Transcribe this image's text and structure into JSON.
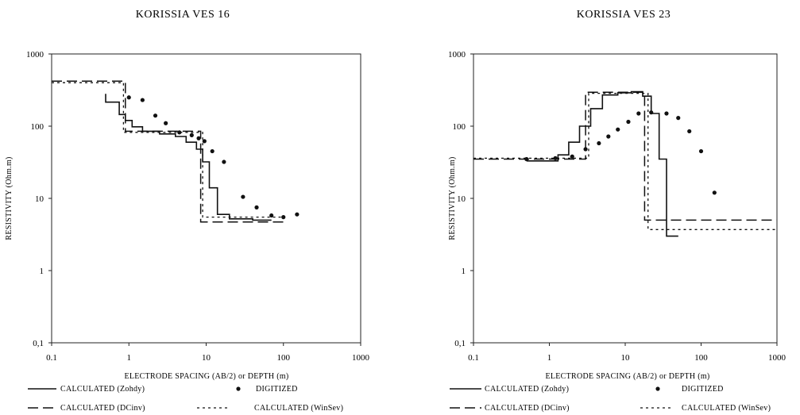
{
  "chart_data": [
    {
      "type": "line",
      "title": "KORISSIA VES 16",
      "xlabel": "ELECTRODE SPACING (AB/2) or DEPTH (m)",
      "ylabel": "RESISTIVITY (Ohm.m)",
      "xscale": "log",
      "yscale": "log",
      "xlim": [
        0.1,
        1000
      ],
      "ylim": [
        0.1,
        1000
      ],
      "xticks": [
        "0.1",
        "1",
        "10",
        "100",
        "1000"
      ],
      "yticks": [
        "0,1",
        "1",
        "10",
        "100",
        "1000"
      ],
      "grid": false,
      "legend_placement": "bottom",
      "legend": [
        {
          "label": "CALCULATED (Zohdy)",
          "style": "solid"
        },
        {
          "label": "DIGITIZED",
          "style": "dot"
        },
        {
          "label": "CALCULATED (DCinv)",
          "style": "dash"
        },
        {
          "label": "CALCULATED (WinSev)",
          "style": "dotted"
        }
      ],
      "series": [
        {
          "name": "CALCULATED (Zohdy)",
          "style": "solid",
          "points": [
            [
              0.5,
              280
            ],
            [
              0.5,
              215
            ],
            [
              0.75,
              215
            ],
            [
              0.75,
              145
            ],
            [
              0.9,
              145
            ],
            [
              0.9,
              120
            ],
            [
              1.1,
              120
            ],
            [
              1.1,
              98
            ],
            [
              1.5,
              98
            ],
            [
              1.5,
              85
            ],
            [
              2.5,
              85
            ],
            [
              2.5,
              78
            ],
            [
              4,
              78
            ],
            [
              4,
              72
            ],
            [
              5.5,
              72
            ],
            [
              5.5,
              60
            ],
            [
              7.5,
              60
            ],
            [
              7.5,
              48
            ],
            [
              9,
              48
            ],
            [
              9,
              32
            ],
            [
              11,
              32
            ],
            [
              11,
              14
            ],
            [
              14,
              14
            ],
            [
              14,
              6
            ],
            [
              20,
              6
            ],
            [
              20,
              5.2
            ],
            [
              40,
              5.2
            ],
            [
              40,
              5
            ],
            [
              70,
              5
            ]
          ]
        },
        {
          "name": "DIGITIZED",
          "style": "dot",
          "points": [
            [
              1,
              250
            ],
            [
              1.5,
              230
            ],
            [
              2.2,
              140
            ],
            [
              3,
              110
            ],
            [
              4.5,
              82
            ],
            [
              6.5,
              75
            ],
            [
              8,
              68
            ],
            [
              9.5,
              62
            ],
            [
              12,
              45
            ],
            [
              17,
              32
            ],
            [
              30,
              10.5
            ],
            [
              45,
              7.5
            ],
            [
              70,
              5.8
            ],
            [
              100,
              5.5
            ],
            [
              150,
              6
            ]
          ]
        },
        {
          "name": "CALCULATED (DCinv)",
          "style": "dash",
          "points": [
            [
              0.1,
              420
            ],
            [
              0.9,
              420
            ],
            [
              0.9,
              85
            ],
            [
              8.5,
              85
            ],
            [
              8.5,
              4.7
            ],
            [
              100,
              4.7
            ]
          ]
        },
        {
          "name": "CALCULATED (WinSev)",
          "style": "dotted",
          "points": [
            [
              0.1,
              400
            ],
            [
              0.85,
              400
            ],
            [
              0.85,
              82
            ],
            [
              9,
              82
            ],
            [
              9,
              5.5
            ],
            [
              100,
              5.5
            ]
          ]
        }
      ]
    },
    {
      "type": "line",
      "title": "KORISSIA VES 23",
      "xlabel": "ELECTRODE SPACING (AB/2) or DEPTH (m)",
      "ylabel": "RESISTIVITY (Ohm.m)",
      "xscale": "log",
      "yscale": "log",
      "xlim": [
        0.1,
        1000
      ],
      "ylim": [
        0.1,
        1000
      ],
      "xticks": [
        "0.1",
        "1",
        "10",
        "100",
        "1000"
      ],
      "yticks": [
        "0,1",
        "1",
        "10",
        "100",
        "1000"
      ],
      "grid": false,
      "legend_placement": "bottom",
      "legend": [
        {
          "label": "CALCULATED (Zohdy)",
          "style": "solid"
        },
        {
          "label": "DIGITIZED",
          "style": "dot"
        },
        {
          "label": "CALCULATED (DCinv)",
          "style": "dash"
        },
        {
          "label": "CALCULATED (WinSev)",
          "style": "dotted"
        }
      ],
      "series": [
        {
          "name": "CALCULATED (Zohdy)",
          "style": "solid",
          "points": [
            [
              0.5,
              33
            ],
            [
              1.3,
              33
            ],
            [
              1.3,
              40
            ],
            [
              1.8,
              40
            ],
            [
              1.8,
              60
            ],
            [
              2.5,
              60
            ],
            [
              2.5,
              100
            ],
            [
              3.5,
              100
            ],
            [
              3.5,
              175
            ],
            [
              5,
              175
            ],
            [
              5,
              270
            ],
            [
              8,
              270
            ],
            [
              8,
              290
            ],
            [
              12,
              290
            ],
            [
              12,
              300
            ],
            [
              17,
              300
            ],
            [
              17,
              260
            ],
            [
              22,
              260
            ],
            [
              22,
              150
            ],
            [
              28,
              150
            ],
            [
              28,
              35
            ],
            [
              35,
              35
            ],
            [
              35,
              3
            ],
            [
              50,
              3
            ]
          ]
        },
        {
          "name": "DIGITIZED",
          "style": "dot",
          "points": [
            [
              0.5,
              35
            ],
            [
              1.2,
              36
            ],
            [
              2,
              38
            ],
            [
              3,
              48
            ],
            [
              4.5,
              58
            ],
            [
              6,
              72
            ],
            [
              8,
              90
            ],
            [
              11,
              115
            ],
            [
              15,
              150
            ],
            [
              22,
              155
            ],
            [
              35,
              150
            ],
            [
              50,
              130
            ],
            [
              70,
              85
            ],
            [
              100,
              45
            ],
            [
              150,
              12
            ]
          ]
        },
        {
          "name": "CALCULATED (DCinv)",
          "style": "dash",
          "points": [
            [
              0.1,
              35
            ],
            [
              3,
              35
            ],
            [
              3,
              295
            ],
            [
              18,
              295
            ],
            [
              18,
              5
            ],
            [
              1000,
              5
            ]
          ]
        },
        {
          "name": "CALCULATED (WinSev)",
          "style": "dotted",
          "points": [
            [
              0.1,
              36
            ],
            [
              3.3,
              36
            ],
            [
              3.3,
              285
            ],
            [
              20,
              285
            ],
            [
              20,
              3.7
            ],
            [
              1000,
              3.7
            ]
          ]
        }
      ]
    }
  ]
}
